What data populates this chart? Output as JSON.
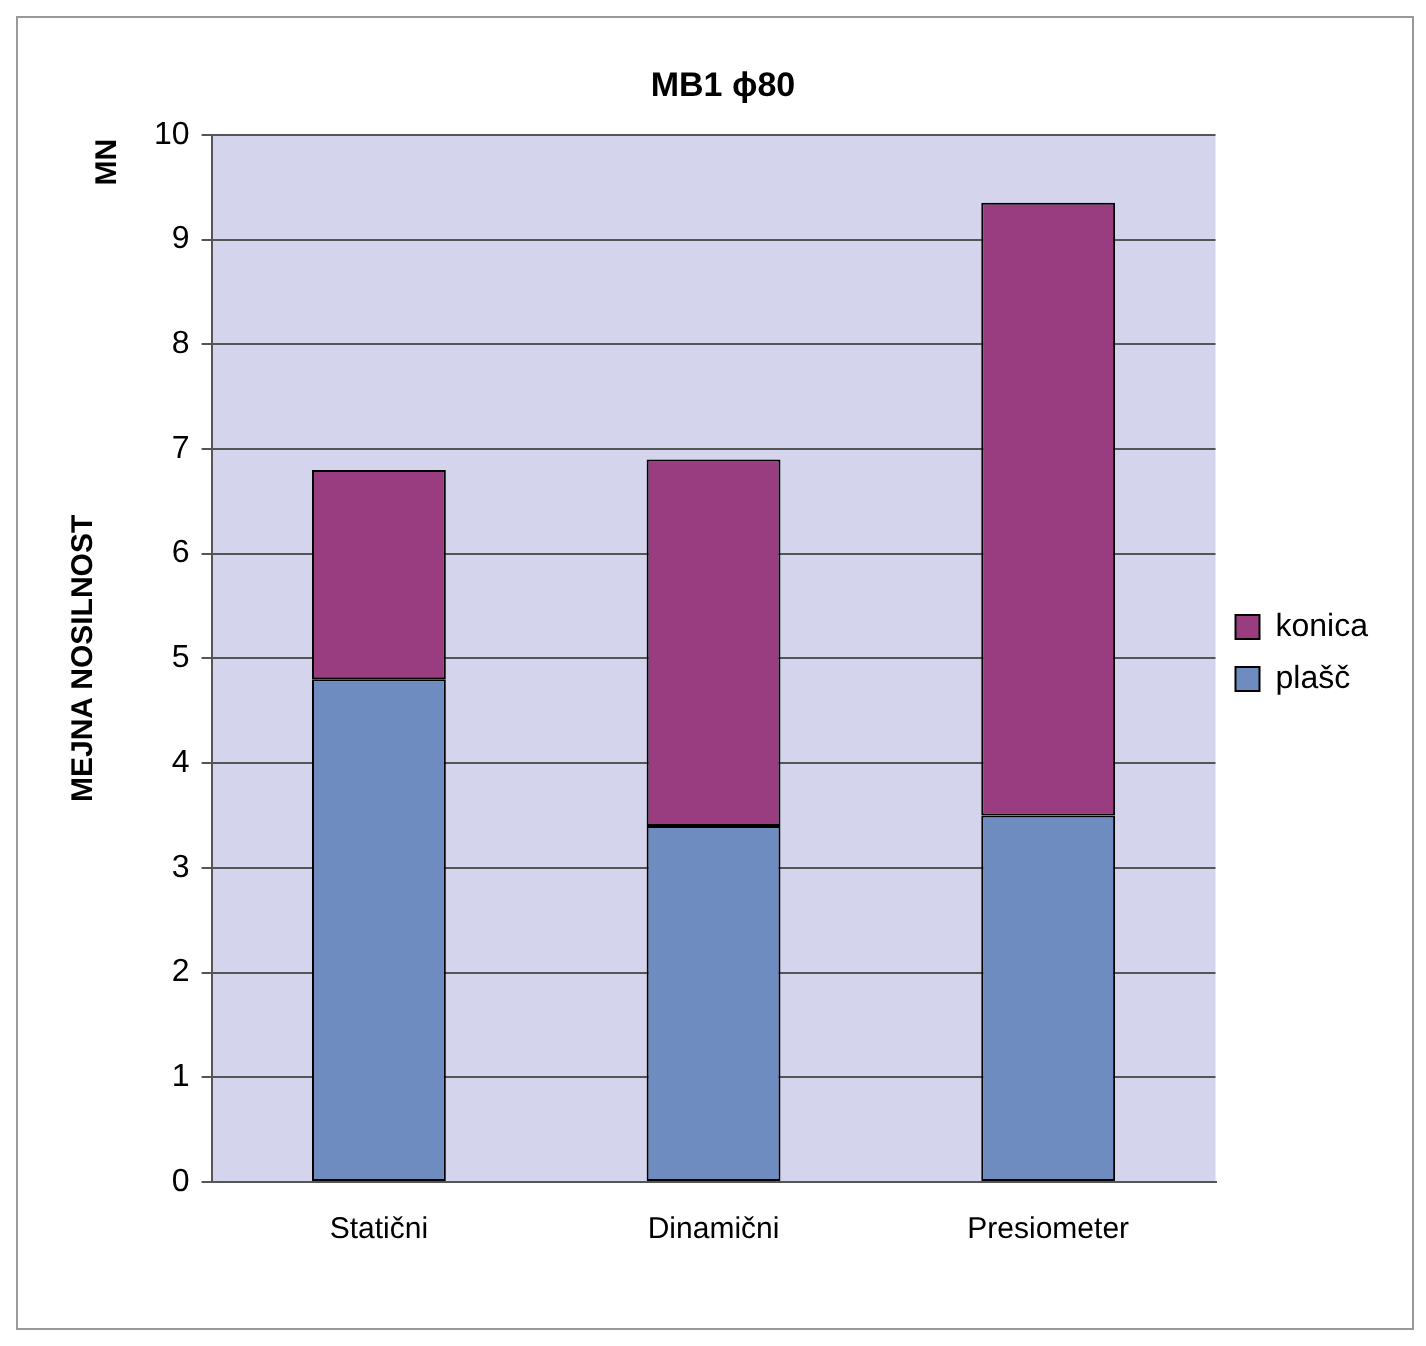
{
  "chart_data": {
    "type": "bar",
    "title": "MB1 ϕ80",
    "ylabel": "MEJNA NOSILNOST",
    "annotations": [
      "MN"
    ],
    "categories": [
      "Statični",
      "Dinamični",
      "Presiometer"
    ],
    "series": [
      {
        "name": "plašč",
        "color": "#6f8cc0",
        "values": [
          4.8,
          3.4,
          3.5
        ]
      },
      {
        "name": "konica",
        "color": "#993d80",
        "values": [
          2.0,
          3.5,
          5.85
        ]
      }
    ],
    "stacked": true,
    "ylim": [
      0,
      10
    ],
    "yticks": [
      0,
      1,
      2,
      3,
      4,
      5,
      6,
      7,
      8,
      9,
      10
    ],
    "grid": "y",
    "legend": "right"
  }
}
